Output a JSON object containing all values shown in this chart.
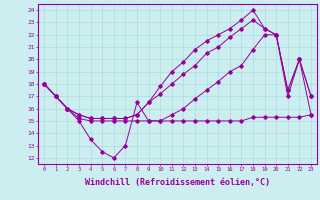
{
  "background_color": "#cceef0",
  "line_color": "#990099",
  "grid_color": "#aadddd",
  "xlabel": "Windchill (Refroidissement éolien,°C)",
  "xlabel_fontsize": 6.0,
  "yticks": [
    12,
    13,
    14,
    15,
    16,
    17,
    18,
    19,
    20,
    21,
    22,
    23,
    24
  ],
  "xticks": [
    0,
    1,
    2,
    3,
    4,
    5,
    6,
    7,
    8,
    9,
    10,
    11,
    12,
    13,
    14,
    15,
    16,
    17,
    18,
    19,
    20,
    21,
    22,
    23
  ],
  "ylim": [
    11.5,
    24.5
  ],
  "xlim": [
    -0.5,
    23.5
  ],
  "series1_x": [
    0,
    1,
    2,
    3,
    4,
    5,
    6,
    7,
    8,
    9,
    10,
    11,
    12,
    13,
    14,
    15,
    16,
    17,
    18,
    19,
    20,
    21,
    22,
    23
  ],
  "series1_y": [
    18.0,
    17.0,
    16.0,
    15.0,
    13.5,
    12.5,
    12.0,
    13.0,
    16.5,
    15.0,
    15.0,
    15.0,
    15.0,
    15.0,
    15.0,
    15.0,
    15.0,
    15.0,
    15.3,
    15.3,
    15.3,
    15.3,
    15.3,
    15.5
  ],
  "series2_x": [
    0,
    1,
    2,
    3,
    4,
    5,
    6,
    7,
    8,
    9,
    10,
    11,
    12,
    13,
    14,
    15,
    16,
    17,
    18,
    19,
    20,
    21,
    22,
    23
  ],
  "series2_y": [
    18.0,
    17.0,
    16.0,
    15.2,
    15.0,
    15.0,
    15.0,
    15.0,
    15.0,
    15.0,
    15.0,
    15.5,
    16.0,
    16.8,
    17.5,
    18.2,
    19.0,
    19.5,
    20.8,
    22.0,
    22.0,
    17.0,
    20.0,
    15.5
  ],
  "series3_x": [
    0,
    1,
    2,
    3,
    4,
    5,
    6,
    7,
    8,
    9,
    10,
    11,
    12,
    13,
    14,
    15,
    16,
    17,
    18,
    19,
    20,
    21,
    22,
    23
  ],
  "series3_y": [
    18.0,
    17.0,
    16.0,
    15.5,
    15.2,
    15.2,
    15.2,
    15.2,
    15.5,
    16.5,
    17.2,
    18.0,
    18.8,
    19.5,
    20.5,
    21.0,
    21.8,
    22.5,
    23.2,
    22.5,
    22.0,
    17.5,
    20.0,
    17.0
  ],
  "series4_x": [
    0,
    1,
    2,
    3,
    4,
    5,
    6,
    7,
    8,
    9,
    10,
    11,
    12,
    13,
    14,
    15,
    16,
    17,
    18,
    19,
    20,
    21,
    22,
    23
  ],
  "series4_y": [
    18.0,
    17.0,
    16.0,
    15.5,
    15.2,
    15.2,
    15.2,
    15.2,
    15.5,
    16.5,
    17.8,
    19.0,
    19.8,
    20.8,
    21.5,
    22.0,
    22.5,
    23.2,
    24.0,
    22.5,
    22.0,
    17.5,
    20.0,
    17.0
  ]
}
